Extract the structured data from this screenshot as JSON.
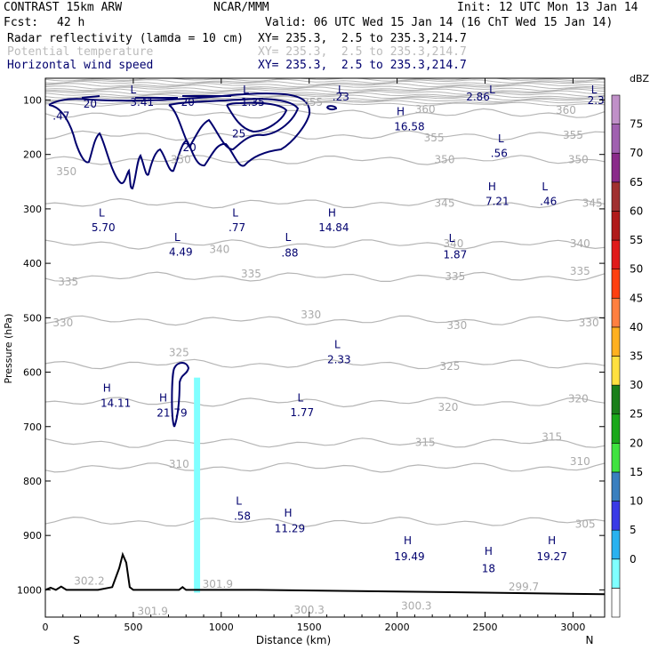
{
  "header": {
    "model": "CONTRAST 15km ARW",
    "org": "NCAR/MMM",
    "init": "Init: 12 UTC Mon 13 Jan 14",
    "fcst_label": "Fcst:",
    "fcst_value": "42 h",
    "valid": "Valid: 06 UTC Wed 15 Jan 14 (16 ChT Wed 15 Jan 14)",
    "fields": [
      {
        "name": "Radar reflectivity (lamda = 10 cm)",
        "xy": "XY= 235.3,  2.5 to 235.3,214.7"
      },
      {
        "name": "Potential temperature",
        "xy": "XY= 235.3,  2.5 to 235.3,214.7"
      },
      {
        "name": "Horizontal wind speed",
        "xy": "XY= 235.3,  2.5 to 235.3,214.7"
      }
    ]
  },
  "chart_data": {
    "type": "cross-section",
    "xlabel": "Distance (km)",
    "ylabel": "Pressure (hPa)",
    "xlim": [
      0,
      3180
    ],
    "ylim": [
      1050,
      60
    ],
    "x_ticks": [
      0,
      500,
      1000,
      1500,
      2000,
      2500,
      3000
    ],
    "x_tick_labels": [
      "0",
      "500",
      "1000",
      "1500",
      "2000",
      "2500",
      "3000"
    ],
    "y_ticks": [
      100,
      200,
      300,
      400,
      500,
      600,
      700,
      800,
      900,
      1000
    ],
    "y_tick_labels": [
      "100",
      "200",
      "300",
      "400",
      "500",
      "600",
      "700",
      "800",
      "900",
      "1000"
    ],
    "end_labels": {
      "left": "S",
      "right": "N"
    },
    "colorbar": {
      "unit": "dBZ",
      "levels": [
        "0",
        "5",
        "10",
        "15",
        "20",
        "25",
        "30",
        "35",
        "40",
        "45",
        "50",
        "55",
        "60",
        "65",
        "70",
        "75"
      ],
      "colors": [
        "#ffffff",
        "#7fffff",
        "#29b2f0",
        "#3a3ae6",
        "#3a7fbf",
        "#3fe33f",
        "#1aa81a",
        "#1a7f1a",
        "#ffe040",
        "#ffb020",
        "#ff8040",
        "#ff4010",
        "#e01a1a",
        "#b01a1a",
        "#a03030",
        "#8a2a8a",
        "#a060b0",
        "#c090c8"
      ]
    },
    "theta_labels": [
      {
        "text": "360",
        "x": 2160,
        "p": 118
      },
      {
        "text": "360",
        "x": 2960,
        "p": 120
      },
      {
        "text": "355",
        "x": 1520,
        "p": 105
      },
      {
        "text": "355",
        "x": 2210,
        "p": 170
      },
      {
        "text": "355",
        "x": 3000,
        "p": 165
      },
      {
        "text": "350",
        "x": 120,
        "p": 232
      },
      {
        "text": "350",
        "x": 770,
        "p": 210
      },
      {
        "text": "350",
        "x": 2270,
        "p": 210
      },
      {
        "text": "350",
        "x": 3030,
        "p": 210
      },
      {
        "text": "345",
        "x": 2270,
        "p": 290
      },
      {
        "text": "345",
        "x": 3110,
        "p": 290
      },
      {
        "text": "340",
        "x": 990,
        "p": 375
      },
      {
        "text": "340",
        "x": 2320,
        "p": 365
      },
      {
        "text": "340",
        "x": 3040,
        "p": 365
      },
      {
        "text": "335",
        "x": 130,
        "p": 435
      },
      {
        "text": "335",
        "x": 1170,
        "p": 420
      },
      {
        "text": "335",
        "x": 2330,
        "p": 425
      },
      {
        "text": "335",
        "x": 3040,
        "p": 415
      },
      {
        "text": "330",
        "x": 100,
        "p": 510
      },
      {
        "text": "330",
        "x": 1510,
        "p": 495
      },
      {
        "text": "330",
        "x": 2340,
        "p": 515
      },
      {
        "text": "330",
        "x": 3090,
        "p": 510
      },
      {
        "text": "325",
        "x": 760,
        "p": 565
      },
      {
        "text": "325",
        "x": 2300,
        "p": 590
      },
      {
        "text": "320",
        "x": 2290,
        "p": 665
      },
      {
        "text": "320",
        "x": 3030,
        "p": 650
      },
      {
        "text": "315",
        "x": 2160,
        "p": 730
      },
      {
        "text": "315",
        "x": 2880,
        "p": 720
      },
      {
        "text": "310",
        "x": 760,
        "p": 770
      },
      {
        "text": "310",
        "x": 3040,
        "p": 765
      },
      {
        "text": "305",
        "x": 3070,
        "p": 880
      },
      {
        "text": "302.2",
        "x": 250,
        "p": 985
      },
      {
        "text": "301.9",
        "x": 980,
        "p": 990
      },
      {
        "text": "301.9",
        "x": 610,
        "p": 1040
      },
      {
        "text": "300.3",
        "x": 1500,
        "p": 1038
      },
      {
        "text": "300.3",
        "x": 2110,
        "p": 1030
      },
      {
        "text": "299.7",
        "x": 2720,
        "p": 995
      }
    ],
    "wind_labels": [
      {
        "text": "20",
        "x": 255,
        "p": 108
      },
      {
        "text": "3.41",
        "x": 550,
        "p": 105
      },
      {
        "text": "20",
        "x": 810,
        "p": 105
      },
      {
        "text": "1.35",
        "x": 1180,
        "p": 105
      },
      {
        "text": ".23",
        "x": 1680,
        "p": 95
      },
      {
        "text": "2.86",
        "x": 2460,
        "p": 95
      },
      {
        "text": "2.3",
        "x": 3130,
        "p": 102
      },
      {
        "text": ".47",
        "x": 90,
        "p": 130
      },
      {
        "text": "16.58",
        "x": 2070,
        "p": 150
      },
      {
        "text": "25",
        "x": 1100,
        "p": 163
      },
      {
        "text": "20",
        "x": 820,
        "p": 188
      },
      {
        "text": ".56",
        "x": 2580,
        "p": 199
      },
      {
        "text": "7.21",
        "x": 2570,
        "p": 287
      },
      {
        "text": ".46",
        "x": 2860,
        "p": 287
      },
      {
        "text": "5.70",
        "x": 330,
        "p": 335
      },
      {
        "text": ".77",
        "x": 1090,
        "p": 335
      },
      {
        "text": "14.84",
        "x": 1640,
        "p": 335
      },
      {
        "text": "4.49",
        "x": 770,
        "p": 380
      },
      {
        "text": ".88",
        "x": 1390,
        "p": 382
      },
      {
        "text": "1.87",
        "x": 2330,
        "p": 385
      },
      {
        "text": "2.33",
        "x": 1670,
        "p": 578
      },
      {
        "text": "14.11",
        "x": 400,
        "p": 658
      },
      {
        "text": "21.79",
        "x": 720,
        "p": 676
      },
      {
        "text": "1.77",
        "x": 1460,
        "p": 675
      },
      {
        "text": ".58",
        "x": 1120,
        "p": 865
      },
      {
        "text": "11.29",
        "x": 1390,
        "p": 888
      },
      {
        "text": "19.49",
        "x": 2070,
        "p": 940
      },
      {
        "text": "19.27",
        "x": 2880,
        "p": 940
      },
      {
        "text": "18",
        "x": 2520,
        "p": 962
      }
    ],
    "extrema_markers": [
      {
        "text": "L",
        "x": 500,
        "p": 82
      },
      {
        "text": "L",
        "x": 1140,
        "p": 82
      },
      {
        "text": "L",
        "x": 1680,
        "p": 82
      },
      {
        "text": "L",
        "x": 2540,
        "p": 82
      },
      {
        "text": "L",
        "x": 3120,
        "p": 82
      },
      {
        "text": "H",
        "x": 2020,
        "p": 122
      },
      {
        "text": "L",
        "x": 2590,
        "p": 172
      },
      {
        "text": "H",
        "x": 2540,
        "p": 260
      },
      {
        "text": "L",
        "x": 2840,
        "p": 260
      },
      {
        "text": "L",
        "x": 320,
        "p": 308
      },
      {
        "text": "L",
        "x": 1080,
        "p": 308
      },
      {
        "text": "H",
        "x": 1630,
        "p": 308
      },
      {
        "text": "L",
        "x": 750,
        "p": 353
      },
      {
        "text": "L",
        "x": 1380,
        "p": 353
      },
      {
        "text": "L",
        "x": 2310,
        "p": 355
      },
      {
        "text": "L",
        "x": 1660,
        "p": 550
      },
      {
        "text": "H",
        "x": 350,
        "p": 630
      },
      {
        "text": "H",
        "x": 670,
        "p": 648
      },
      {
        "text": "L",
        "x": 1450,
        "p": 648
      },
      {
        "text": "L",
        "x": 1100,
        "p": 838
      },
      {
        "text": "H",
        "x": 1380,
        "p": 860
      },
      {
        "text": "H",
        "x": 2060,
        "p": 910
      },
      {
        "text": "H",
        "x": 2880,
        "p": 910
      },
      {
        "text": "H",
        "x": 2520,
        "p": 930
      }
    ],
    "reflectivity_column": {
      "x_start": 845,
      "x_end": 880,
      "p_top": 610,
      "p_bottom": 1005,
      "dbz": "5-10"
    },
    "terrain": [
      [
        0,
        1000
      ],
      [
        30,
        996
      ],
      [
        60,
        1000
      ],
      [
        90,
        994
      ],
      [
        120,
        1000
      ],
      [
        300,
        1000
      ],
      [
        380,
        995
      ],
      [
        420,
        960
      ],
      [
        440,
        935
      ],
      [
        460,
        950
      ],
      [
        480,
        995
      ],
      [
        500,
        1000
      ],
      [
        760,
        1000
      ],
      [
        780,
        995
      ],
      [
        800,
        1000
      ],
      [
        1200,
        1000
      ],
      [
        2000,
        1003
      ],
      [
        2500,
        1005
      ],
      [
        3180,
        1008
      ]
    ],
    "theta_levels": [
      {
        "label": "360",
        "p": 125
      },
      {
        "label": "355",
        "p": 165
      },
      {
        "label": "350",
        "p": 210
      },
      {
        "label": "345",
        "p": 290
      },
      {
        "label": "340",
        "p": 365
      },
      {
        "label": "335",
        "p": 425
      },
      {
        "label": "330",
        "p": 505
      },
      {
        "label": "325",
        "p": 585
      },
      {
        "label": "320",
        "p": 655
      },
      {
        "label": "315",
        "p": 730
      },
      {
        "label": "310",
        "p": 775
      },
      {
        "label": "305",
        "p": 875
      }
    ]
  }
}
